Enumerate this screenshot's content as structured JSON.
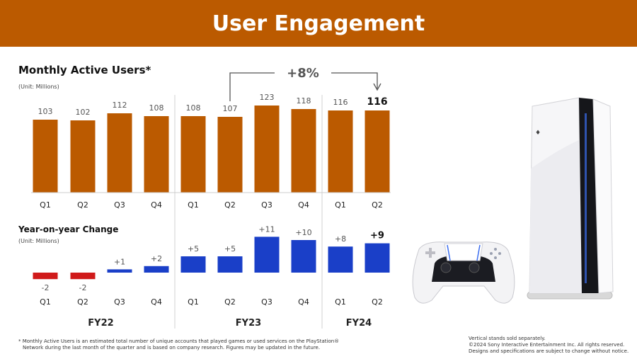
{
  "header": {
    "title": "User Engagement"
  },
  "mau_chart": {
    "title": "Monthly Active Users*",
    "unit": "(Unit: Millions)"
  },
  "yoy_chart": {
    "title": "Year-on-year Change",
    "unit": "(Unit: Millions)"
  },
  "growth_callout": "+8%",
  "chart_data": [
    {
      "type": "bar",
      "title": "Monthly Active Users*",
      "unit": "(Unit: Millions)",
      "categories": [
        "Q1",
        "Q2",
        "Q3",
        "Q4",
        "Q1",
        "Q2",
        "Q3",
        "Q4",
        "Q1",
        "Q2"
      ],
      "values": [
        103,
        102,
        112,
        108,
        108,
        107,
        123,
        118,
        116,
        116
      ],
      "data_labels": [
        "103",
        "102",
        "112",
        "108",
        "108",
        "107",
        "123",
        "118",
        "116",
        "116"
      ],
      "groups": [
        {
          "label": "FY22",
          "count": 4
        },
        {
          "label": "FY23",
          "count": 4
        },
        {
          "label": "FY24",
          "count": 2
        }
      ],
      "ylim": [
        0,
        125
      ],
      "color": "#bb5a00",
      "annotation": "+8%"
    },
    {
      "type": "bar",
      "title": "Year-on-year Change",
      "unit": "(Unit: Millions)",
      "categories": [
        "Q1",
        "Q2",
        "Q3",
        "Q4",
        "Q1",
        "Q2",
        "Q3",
        "Q4",
        "Q1",
        "Q2"
      ],
      "values": [
        -2,
        -2,
        1,
        2,
        5,
        5,
        11,
        10,
        8,
        9
      ],
      "data_labels": [
        "-2",
        "-2",
        "+1",
        "+2",
        "+5",
        "+5",
        "+11",
        "+10",
        "+8",
        "+9"
      ],
      "groups": [
        {
          "label": "FY22",
          "count": 4
        },
        {
          "label": "FY23",
          "count": 4
        },
        {
          "label": "FY24",
          "count": 2
        }
      ],
      "positive_color": "#1a3fc8",
      "negative_color": "#d01a1a"
    }
  ],
  "footnote": {
    "line1": "* Monthly Active Users is an estimated total number of unique accounts that played games or used services on the PlayStation®",
    "line2": "Network during the last month of the quarter and is based on company research. Figures may be updated in the future."
  },
  "legal": {
    "line1": "Vertical stands sold separately.",
    "line2": "©2024 Sony Interactive Entertainment Inc. All rights reserved.",
    "line3": "Designs and specifications are subject to change without notice."
  }
}
